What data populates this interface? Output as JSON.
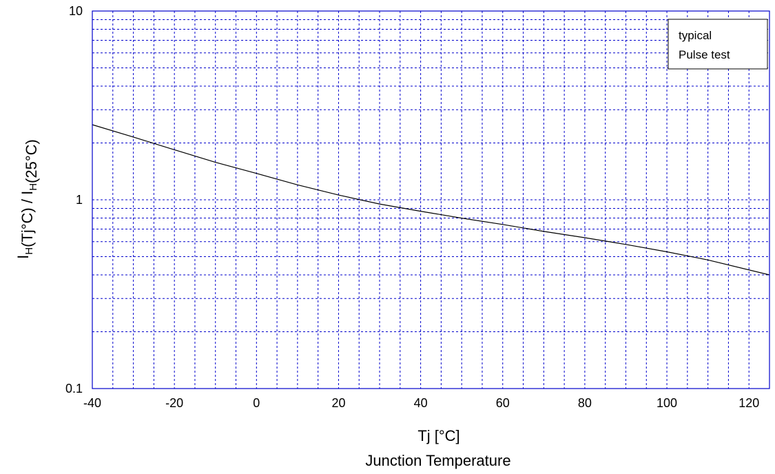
{
  "chart_data": {
    "type": "line",
    "xlabel_line1": "Tj   [°C]",
    "xlabel_line2": "Junction  Temperature",
    "ylabel_parts": [
      {
        "text": "I",
        "sub": false
      },
      {
        "text": "H",
        "sub": true
      },
      {
        "text": "(Tj°C)  /  I",
        "sub": false
      },
      {
        "text": "H",
        "sub": true
      },
      {
        "text": "(25°C)",
        "sub": false
      }
    ],
    "x_scale": "linear",
    "y_scale": "log",
    "xlim": [
      -40,
      125
    ],
    "ylim": [
      0.1,
      10
    ],
    "x_ticks": [
      -40,
      -20,
      0,
      20,
      40,
      60,
      80,
      100,
      120
    ],
    "x_tick_labels": [
      "-40",
      "-20",
      "0",
      "20",
      "40",
      "60",
      "80",
      "100",
      "120"
    ],
    "y_ticks": [
      0.1,
      1,
      10
    ],
    "y_tick_labels": [
      "0.1",
      "1",
      "10"
    ],
    "x_minor_grid": [
      -35,
      -30,
      -25,
      -15,
      -10,
      -5,
      5,
      10,
      15,
      25,
      30,
      35,
      45,
      50,
      55,
      65,
      70,
      75,
      85,
      90,
      95,
      105,
      110,
      115
    ],
    "y_minor_grid": [
      0.2,
      0.3,
      0.4,
      0.5,
      0.6,
      0.7,
      0.8,
      0.9,
      2,
      3,
      4,
      5,
      6,
      7,
      8,
      9
    ],
    "grid": true,
    "grid_color": "#0000cc",
    "line_color": "#000000",
    "legend": {
      "position": "top-right",
      "lines": [
        "typical",
        "Pulse test"
      ]
    },
    "series": [
      {
        "x": [
          -40,
          -30,
          -20,
          -10,
          0,
          10,
          20,
          30,
          40,
          50,
          60,
          70,
          80,
          90,
          100,
          110,
          125
        ],
        "y": [
          2.5,
          2.15,
          1.84,
          1.58,
          1.38,
          1.2,
          1.06,
          0.95,
          0.87,
          0.8,
          0.74,
          0.68,
          0.63,
          0.58,
          0.53,
          0.48,
          0.4
        ]
      }
    ]
  }
}
